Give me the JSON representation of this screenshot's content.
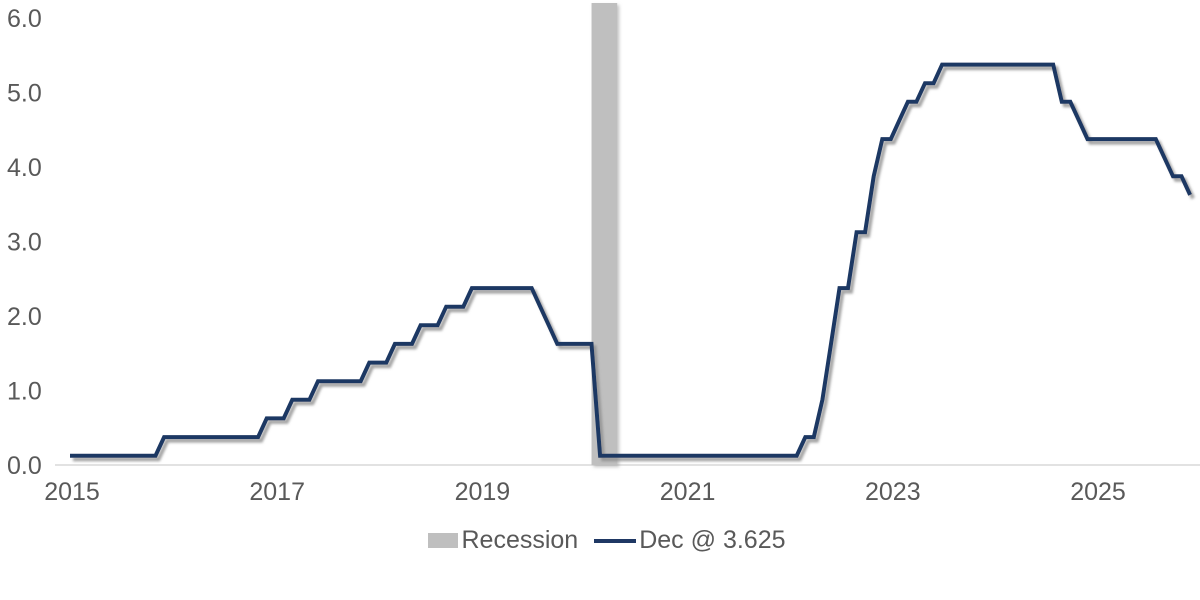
{
  "chart_data": {
    "type": "line",
    "title": "",
    "xlabel": "",
    "ylabel": "",
    "grid": "baseline-only",
    "legend_position": "bottom-center",
    "x_axis": {
      "tick_labels": [
        "2015",
        "2017",
        "2019",
        "2021",
        "2023",
        "2025"
      ],
      "tick_years": [
        2015,
        2017,
        2019,
        2021,
        2023,
        2025
      ],
      "range": [
        "2015-01",
        "2026-01"
      ]
    },
    "y_axis": {
      "tick_labels": [
        "6.0",
        "5.0",
        "4.0",
        "3.0",
        "2.0",
        "1.0",
        "0.0"
      ],
      "tick_values": [
        6,
        5,
        4,
        3,
        2,
        1,
        0
      ],
      "range": [
        0.0,
        6.0
      ]
    },
    "series": [
      {
        "name": "Dec @ 3.625",
        "color": "#1f3864",
        "unit": "percent",
        "frequency": "monthly",
        "step_segments": [
          {
            "from": "2015-01",
            "to": "2015-11",
            "value": 0.125
          },
          {
            "from": "2015-12",
            "to": "2016-11",
            "value": 0.375
          },
          {
            "from": "2016-12",
            "to": "2017-02",
            "value": 0.625
          },
          {
            "from": "2017-03",
            "to": "2017-05",
            "value": 0.875
          },
          {
            "from": "2017-06",
            "to": "2017-11",
            "value": 1.125
          },
          {
            "from": "2017-12",
            "to": "2018-02",
            "value": 1.375
          },
          {
            "from": "2018-03",
            "to": "2018-05",
            "value": 1.625
          },
          {
            "from": "2018-06",
            "to": "2018-08",
            "value": 1.875
          },
          {
            "from": "2018-09",
            "to": "2018-11",
            "value": 2.125
          },
          {
            "from": "2018-12",
            "to": "2019-07",
            "value": 2.375
          },
          {
            "from": "2019-08",
            "to": "2019-08",
            "value": 2.125
          },
          {
            "from": "2019-09",
            "to": "2019-09",
            "value": 1.875
          },
          {
            "from": "2019-10",
            "to": "2020-02",
            "value": 1.625
          },
          {
            "from": "2020-03",
            "to": "2022-02",
            "value": 0.125
          },
          {
            "from": "2022-03",
            "to": "2022-04",
            "value": 0.375
          },
          {
            "from": "2022-05",
            "to": "2022-05",
            "value": 0.875
          },
          {
            "from": "2022-06",
            "to": "2022-06",
            "value": 1.625
          },
          {
            "from": "2022-07",
            "to": "2022-08",
            "value": 2.375
          },
          {
            "from": "2022-09",
            "to": "2022-10",
            "value": 3.125
          },
          {
            "from": "2022-11",
            "to": "2022-11",
            "value": 3.875
          },
          {
            "from": "2022-12",
            "to": "2023-01",
            "value": 4.375
          },
          {
            "from": "2023-02",
            "to": "2023-02",
            "value": 4.625
          },
          {
            "from": "2023-03",
            "to": "2023-04",
            "value": 4.875
          },
          {
            "from": "2023-05",
            "to": "2023-06",
            "value": 5.125
          },
          {
            "from": "2023-07",
            "to": "2024-08",
            "value": 5.375
          },
          {
            "from": "2024-09",
            "to": "2024-10",
            "value": 4.875
          },
          {
            "from": "2024-11",
            "to": "2024-11",
            "value": 4.625
          },
          {
            "from": "2024-12",
            "to": "2025-08",
            "value": 4.375
          },
          {
            "from": "2025-09",
            "to": "2025-09",
            "value": 4.125
          },
          {
            "from": "2025-10",
            "to": "2025-11",
            "value": 3.875
          },
          {
            "from": "2025-12",
            "to": "2025-12",
            "value": 3.625
          }
        ],
        "last_point": {
          "date": "2025-12",
          "value": 3.625
        }
      }
    ],
    "bands": [
      {
        "name": "Recession",
        "color": "#bfbfbf",
        "from": "2020-02",
        "to": "2020-04"
      }
    ],
    "colors": {
      "line": "#1f3864",
      "band": "#bfbfbf",
      "axis_text": "#595959",
      "gridline": "#d9d9d9",
      "background": "#ffffff"
    }
  }
}
